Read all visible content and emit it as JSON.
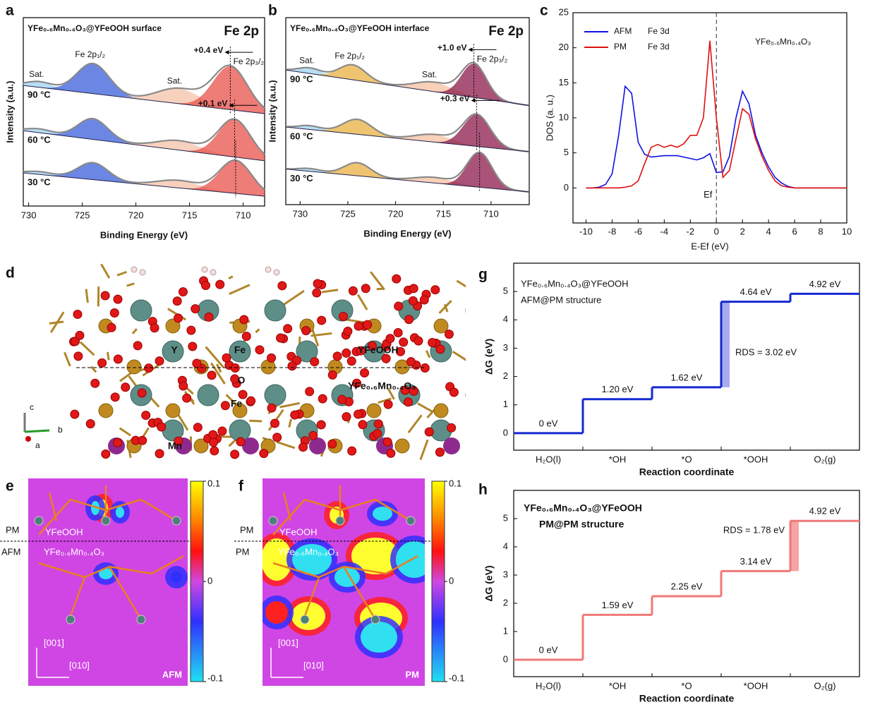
{
  "chart_data": [
    {
      "type": "xps",
      "panel": "a",
      "title": "Fe 2p",
      "sample": "YFe₀.₆Mn₀.₄O₃@YFeOOH surface",
      "xlabel": "Binding Energy (eV)",
      "ylabel": "Intensity (a.u.)",
      "xlim": [
        730.5,
        708
      ],
      "xticks": [
        730,
        725,
        720,
        715,
        710
      ],
      "ylim": [
        0,
        10
      ],
      "peak_labels": [
        "Sat.",
        "Fe 2p₁/₂",
        "Sat.",
        "Fe 2p₃/₂"
      ],
      "shifts": [
        {
          "value": 0.4,
          "label": "+0.4 eV"
        },
        {
          "value": 0.1,
          "label": "+0.1 eV"
        }
      ],
      "series": [
        {
          "name": "90 °C",
          "baseline": [
            6.4,
            4.9
          ],
          "peaks": [
            {
              "center": 729,
              "height": 0.3,
              "width": 1.2,
              "color": "#9fd3f0"
            },
            {
              "center": 724,
              "height": 1.6,
              "width": 1.5,
              "color": "#3a5fd9"
            },
            {
              "center": 716,
              "height": 0.8,
              "width": 2,
              "color": "#f5c2a8"
            },
            {
              "center": 711.2,
              "height": 2.3,
              "width": 1.6,
              "color": "#e8504a"
            }
          ]
        },
        {
          "name": "60 °C",
          "baseline": [
            4.0,
            2.4
          ],
          "peaks": [
            {
              "center": 729,
              "height": 0.2,
              "width": 1.2,
              "color": "#9fd3f0"
            },
            {
              "center": 724,
              "height": 1.1,
              "width": 1.4,
              "color": "#3a5fd9"
            },
            {
              "center": 716,
              "height": 0.5,
              "width": 2,
              "color": "#f5c2a8"
            },
            {
              "center": 710.8,
              "height": 2.0,
              "width": 1.5,
              "color": "#e8504a"
            }
          ]
        },
        {
          "name": "30 °C",
          "baseline": [
            1.76,
            0.52
          ],
          "peaks": [
            {
              "center": 729,
              "height": 0.15,
              "width": 1.2,
              "color": "#9fd3f0"
            },
            {
              "center": 724,
              "height": 0.9,
              "width": 1.4,
              "color": "#3a5fd9"
            },
            {
              "center": 716,
              "height": 0.4,
              "width": 2,
              "color": "#f5c2a8"
            },
            {
              "center": 710.7,
              "height": 1.75,
              "width": 1.5,
              "color": "#e8504a"
            }
          ]
        }
      ]
    },
    {
      "type": "xps",
      "panel": "b",
      "title": "Fe 2p",
      "sample": "YFe₀.₆Mn₀.₄O₃@YFeOOH interface",
      "xlabel": "Binding Energy (eV)",
      "ylabel": "Intensity (a.u.)",
      "xlim": [
        731.5,
        706
      ],
      "xticks": [
        730,
        725,
        720,
        715,
        710
      ],
      "ylim": [
        0,
        10
      ],
      "peak_labels": [
        "Sat.",
        "Fe 2p₁/₂",
        "Sat.",
        "Fe 2p₃/₂"
      ],
      "shifts": [
        {
          "value": 1.0,
          "label": "+1.0 eV"
        },
        {
          "value": 0.3,
          "label": "+0.3 eV"
        }
      ],
      "series": [
        {
          "name": "90 °C",
          "baseline": [
            7.2,
            5.3
          ],
          "peaks": [
            {
              "center": 729,
              "height": 0.3,
              "width": 1.2,
              "color": "#9fd3f0"
            },
            {
              "center": 724.5,
              "height": 0.8,
              "width": 1.4,
              "color": "#e8b040"
            },
            {
              "center": 716,
              "height": 0.5,
              "width": 2,
              "color": "#f5c0a0"
            },
            {
              "center": 711.8,
              "height": 1.8,
              "width": 1.3,
              "color": "#8b1a4a"
            }
          ]
        },
        {
          "name": "60 °C",
          "baseline": [
            4.15,
            2.83
          ],
          "peaks": [
            {
              "center": 729,
              "height": 0.2,
              "width": 1.2,
              "color": "#9fd3f0"
            },
            {
              "center": 724,
              "height": 0.8,
              "width": 1.5,
              "color": "#e8b040"
            },
            {
              "center": 716,
              "height": 0.4,
              "width": 2,
              "color": "#f5c0a0"
            },
            {
              "center": 711.5,
              "height": 1.7,
              "width": 1.4,
              "color": "#8b1a4a"
            }
          ]
        },
        {
          "name": "30 °C",
          "baseline": [
            1.9,
            0.68
          ],
          "peaks": [
            {
              "center": 729,
              "height": 0.15,
              "width": 1.2,
              "color": "#9fd3f0"
            },
            {
              "center": 724,
              "height": 0.7,
              "width": 1.4,
              "color": "#e8b040"
            },
            {
              "center": 716,
              "height": 0.3,
              "width": 2,
              "color": "#f5c0a0"
            },
            {
              "center": 711.2,
              "height": 1.85,
              "width": 1.3,
              "color": "#8b1a4a"
            }
          ]
        }
      ]
    },
    {
      "type": "dos",
      "panel": "c",
      "annotation": "YFe₀.₆Mn₀.₄O₃",
      "xlabel": "E-Ef (eV)",
      "ylabel": "DOS (a. u.)",
      "xlim": [
        -11,
        10
      ],
      "xticks": [
        -10,
        -8,
        -6,
        -4,
        -2,
        0,
        2,
        4,
        6,
        8,
        10
      ],
      "ylim": [
        -5,
        25
      ],
      "yticks": [
        0,
        5,
        10,
        15,
        20,
        25
      ],
      "fermi_level": {
        "value": 0,
        "label": "Ef"
      },
      "x": [
        -10,
        -9.5,
        -9,
        -8.5,
        -8,
        -7.5,
        -7,
        -6.5,
        -6,
        -5.5,
        -5,
        -4.5,
        -4,
        -3.5,
        -3,
        -2.5,
        -2,
        -1.5,
        -1,
        -0.5,
        0,
        0.5,
        1,
        1.5,
        2,
        2.5,
        3,
        3.5,
        4,
        4.5,
        5,
        5.5,
        6,
        6.5,
        7,
        7.5,
        8,
        8.5,
        9,
        9.5,
        10
      ],
      "series": [
        {
          "name": "AFM",
          "projection": "Fe 3d",
          "color": "#1010e0",
          "values": [
            0,
            0,
            0.1,
            0.5,
            2,
            7.5,
            14.5,
            13.5,
            6.5,
            4.8,
            4.4,
            4.5,
            4.6,
            4.6,
            4.6,
            4.4,
            4.2,
            4.0,
            4.3,
            4.9,
            2.2,
            2.3,
            4.5,
            10,
            13.8,
            12,
            7.5,
            5,
            3,
            1.5,
            0.7,
            0.2,
            0,
            0,
            0,
            0,
            0,
            0,
            0,
            0,
            0
          ]
        },
        {
          "name": "PM",
          "projection": "Fe 3d",
          "color": "#e01010",
          "values": [
            0,
            0,
            0,
            0,
            0,
            0,
            0.1,
            0.3,
            1,
            3.5,
            5.8,
            6.2,
            5.8,
            6.1,
            5.8,
            6.3,
            7.5,
            7.5,
            10,
            21,
            10,
            1.5,
            2.5,
            7,
            11.3,
            10.5,
            7,
            4.5,
            2.5,
            1,
            0.3,
            0.1,
            0,
            0,
            0,
            0,
            0,
            0,
            0,
            0,
            0
          ]
        }
      ]
    },
    {
      "type": "step",
      "panel": "g",
      "annotations": [
        "YFe₀.₆Mn₀.₄O₃@YFeOOH",
        "AFM@PM structure"
      ],
      "xlabel": "Reaction coordinate",
      "ylabel": "ΔG (eV)",
      "color": "#1428d0",
      "categories": [
        "H₂O(l)",
        "*OH",
        "*O",
        "*OOH",
        "O₂(g)"
      ],
      "values": [
        0,
        1.2,
        1.62,
        4.64,
        4.92
      ],
      "value_labels": [
        "0 eV",
        "1.20 eV",
        "1.62 eV",
        "4.64 eV",
        "4.92 eV"
      ],
      "rds": {
        "value": 3.02,
        "label": "RDS = 3.02 eV",
        "color": "#a9aaee"
      },
      "ylim": [
        -0.6,
        6
      ],
      "yticks": [
        0,
        1,
        2,
        3,
        4,
        5
      ]
    },
    {
      "type": "step",
      "panel": "h",
      "annotations": [
        "YFe₀.₆Mn₀.₄O₃@YFeOOH",
        "PM@PM structure"
      ],
      "xlabel": "Reaction coordinate",
      "ylabel": "ΔG (eV)",
      "color": "#f07878",
      "categories": [
        "H₂O(l)",
        "*OH",
        "*O",
        "*OOH",
        "O₂(g)"
      ],
      "values": [
        0,
        1.59,
        2.25,
        3.14,
        4.92
      ],
      "value_labels": [
        "0 eV",
        "1.59 eV",
        "2.25 eV",
        "3.14 eV",
        "4.92 eV"
      ],
      "rds": {
        "value": 1.78,
        "label": "RDS = 1.78 eV",
        "color": "#f4a4a4"
      },
      "ylim": [
        -0.6,
        6
      ],
      "yticks": [
        0,
        1,
        2,
        3,
        4,
        5
      ]
    }
  ],
  "structure": {
    "panel": "d",
    "top_layer": "YFeOOH",
    "bottom_layer": "YFe₀.₆Mn₀.₄O₃",
    "atoms": [
      "Y",
      "Fe",
      "O",
      "Fe",
      "Mn"
    ],
    "axes": [
      "c",
      "b",
      "a"
    ]
  },
  "maps": [
    {
      "panel": "e",
      "mode": "AFM",
      "upper_state": "PM",
      "lower_state": "AFM",
      "top_layer": "YFeOOH",
      "bottom_layer": "YFe₀.₆Mn₀.₄O₃",
      "axes": [
        "[001]",
        "[010]"
      ],
      "clim": [
        -0.1,
        0.1
      ],
      "cticks": [
        0.1,
        0,
        -0.1
      ]
    },
    {
      "panel": "f",
      "mode": "PM",
      "upper_state": "PM",
      "lower_state": "PM",
      "top_layer": "YFeOOH",
      "bottom_layer": "YFe₀.₆Mn₀.₄O₃",
      "axes": [
        "[001]",
        "[010]"
      ],
      "clim": [
        -0.1,
        0.1
      ],
      "cticks": [
        0.1,
        0,
        -0.1
      ]
    }
  ]
}
